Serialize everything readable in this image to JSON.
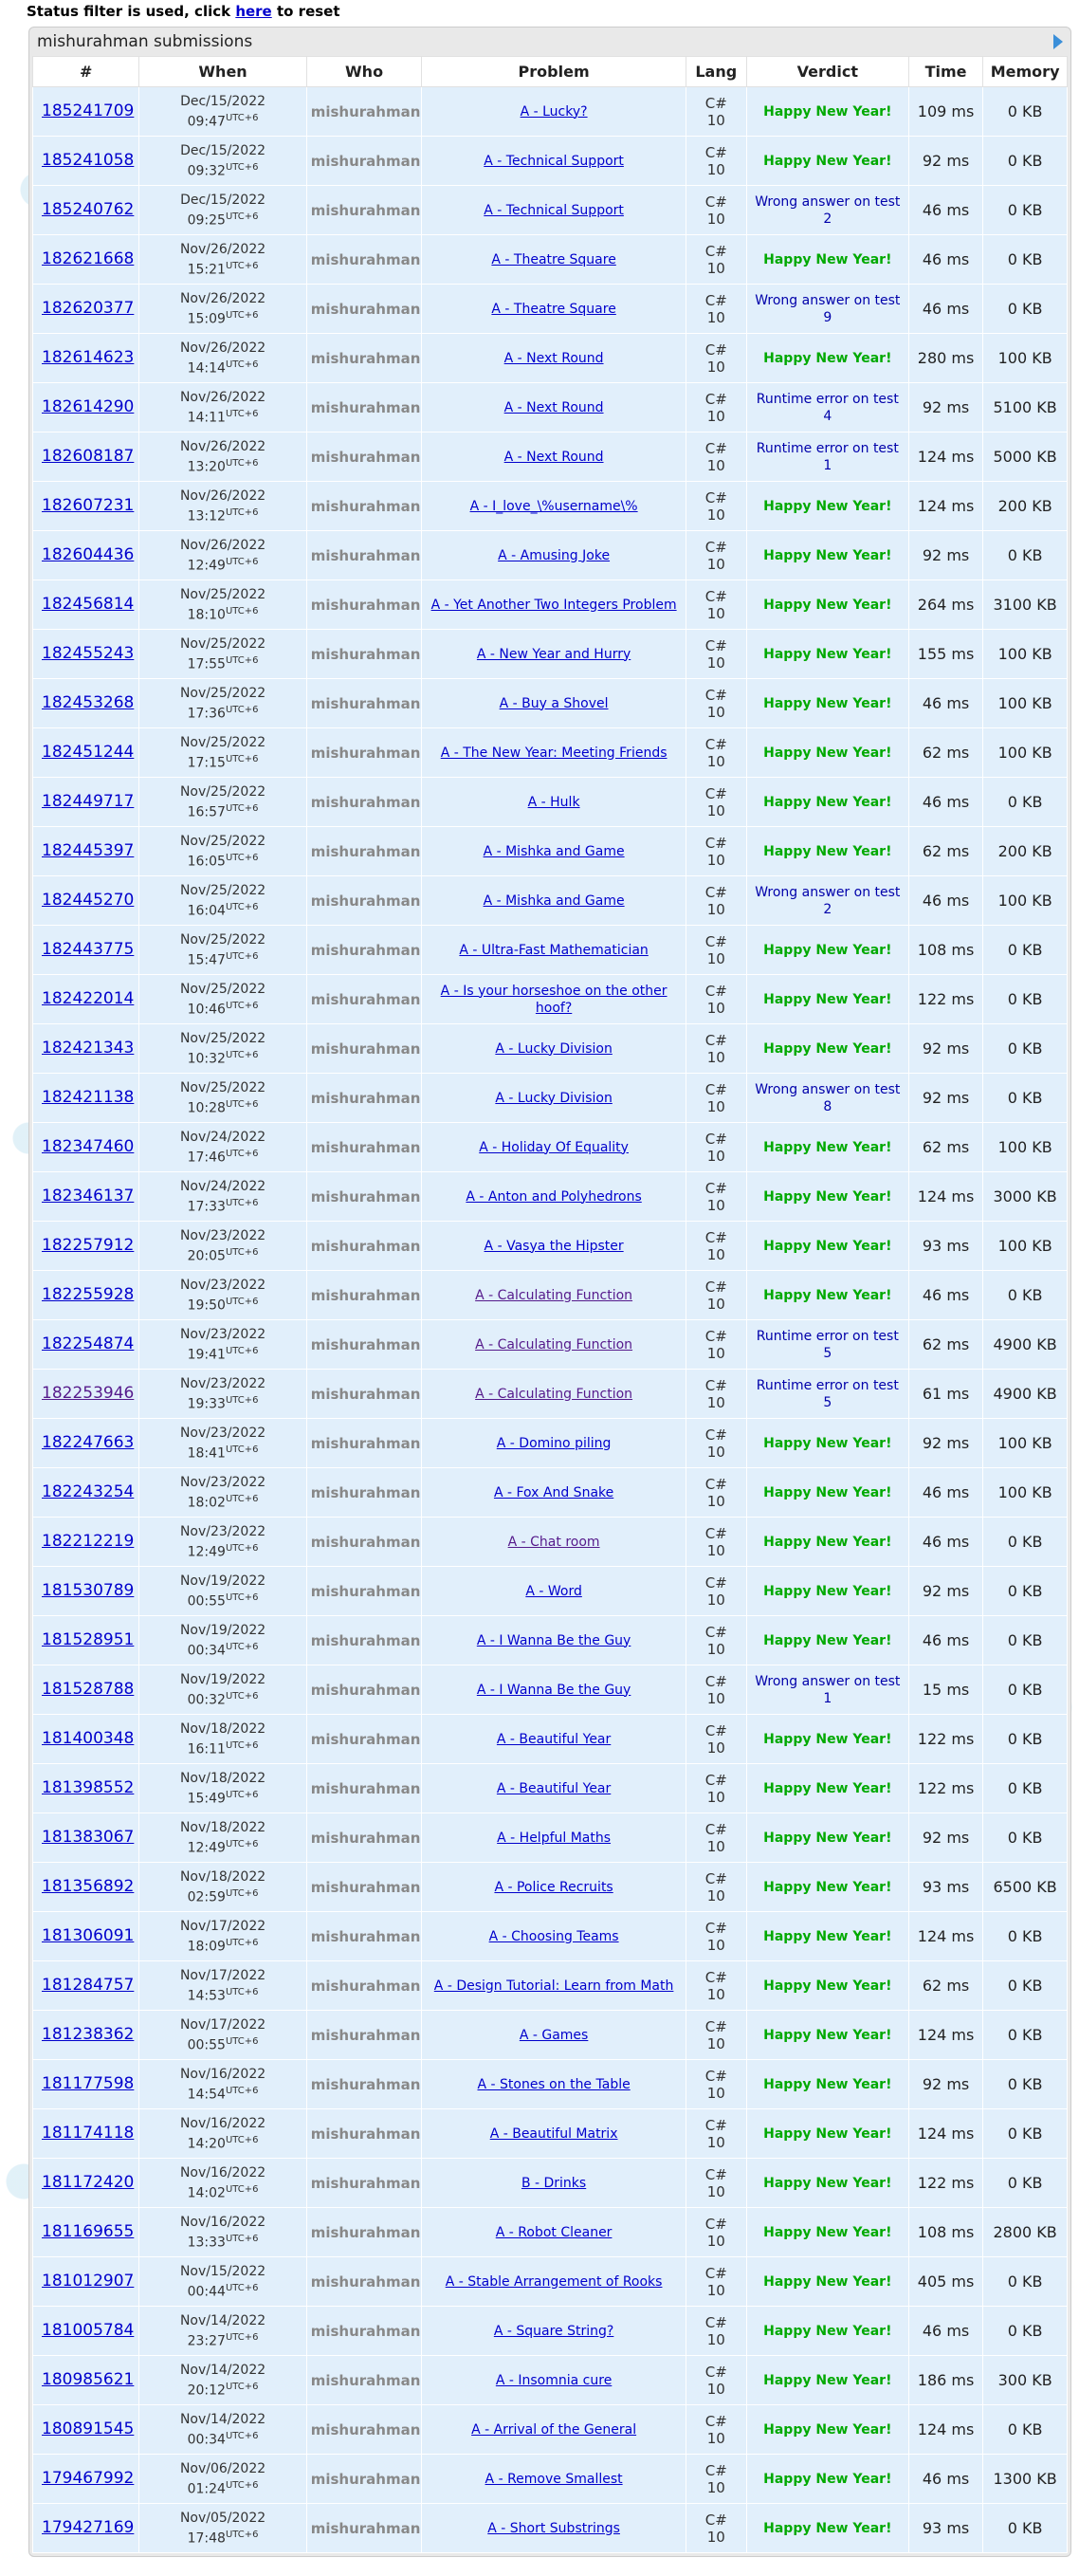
{
  "filter_note": {
    "prefix": "Status filter is used, click ",
    "link": "here",
    "suffix": " to reset"
  },
  "panel_title": "mishurahman submissions",
  "columns": {
    "id": "#",
    "when": "When",
    "who": "Who",
    "problem": "Problem",
    "lang": "Lang",
    "verdict": "Verdict",
    "time": "Time",
    "memory": "Memory"
  },
  "tz": "UTC+6",
  "user": "mishurahman",
  "lang_line1": "C#",
  "lang_line2": "10",
  "colors": {
    "accepted": "#00a900",
    "rejected": "#0000aa",
    "link": "#0000cc",
    "visited": "#551a8b",
    "row_bg": "#e1effb"
  },
  "icons": {
    "panel_toggle": "triangle-right-icon"
  },
  "submissions": [
    {
      "id": "185241709",
      "date": "Dec/15/2022",
      "time": "09:47",
      "problem": "A - Lucky?",
      "verdict": "Happy New Year!",
      "accepted": true,
      "time_ms": "109 ms",
      "memory": "0 KB"
    },
    {
      "id": "185241058",
      "date": "Dec/15/2022",
      "time": "09:32",
      "problem": "A - Technical Support",
      "verdict": "Happy New Year!",
      "accepted": true,
      "time_ms": "92 ms",
      "memory": "0 KB"
    },
    {
      "id": "185240762",
      "date": "Dec/15/2022",
      "time": "09:25",
      "problem": "A - Technical Support",
      "verdict": "Wrong answer on test 2",
      "accepted": false,
      "time_ms": "46 ms",
      "memory": "0 KB"
    },
    {
      "id": "182621668",
      "date": "Nov/26/2022",
      "time": "15:21",
      "problem": "A - Theatre Square",
      "verdict": "Happy New Year!",
      "accepted": true,
      "time_ms": "46 ms",
      "memory": "0 KB"
    },
    {
      "id": "182620377",
      "date": "Nov/26/2022",
      "time": "15:09",
      "problem": "A - Theatre Square",
      "verdict": "Wrong answer on test 9",
      "accepted": false,
      "time_ms": "46 ms",
      "memory": "0 KB"
    },
    {
      "id": "182614623",
      "date": "Nov/26/2022",
      "time": "14:14",
      "problem": "A - Next Round",
      "verdict": "Happy New Year!",
      "accepted": true,
      "time_ms": "280 ms",
      "memory": "100 KB"
    },
    {
      "id": "182614290",
      "date": "Nov/26/2022",
      "time": "14:11",
      "problem": "A - Next Round",
      "verdict": "Runtime error on test 4",
      "accepted": false,
      "time_ms": "92 ms",
      "memory": "5100 KB"
    },
    {
      "id": "182608187",
      "date": "Nov/26/2022",
      "time": "13:20",
      "problem": "A - Next Round",
      "verdict": "Runtime error on test 1",
      "accepted": false,
      "time_ms": "124 ms",
      "memory": "5000 KB"
    },
    {
      "id": "182607231",
      "date": "Nov/26/2022",
      "time": "13:12",
      "problem": "A - I_love_\\%username\\%",
      "verdict": "Happy New Year!",
      "accepted": true,
      "time_ms": "124 ms",
      "memory": "200 KB"
    },
    {
      "id": "182604436",
      "date": "Nov/26/2022",
      "time": "12:49",
      "problem": "A - Amusing Joke",
      "verdict": "Happy New Year!",
      "accepted": true,
      "time_ms": "92 ms",
      "memory": "0 KB"
    },
    {
      "id": "182456814",
      "date": "Nov/25/2022",
      "time": "18:10",
      "problem": "A - Yet Another Two Integers Problem",
      "verdict": "Happy New Year!",
      "accepted": true,
      "time_ms": "264 ms",
      "memory": "3100 KB"
    },
    {
      "id": "182455243",
      "date": "Nov/25/2022",
      "time": "17:55",
      "problem": "A - New Year and Hurry",
      "verdict": "Happy New Year!",
      "accepted": true,
      "time_ms": "155 ms",
      "memory": "100 KB"
    },
    {
      "id": "182453268",
      "date": "Nov/25/2022",
      "time": "17:36",
      "problem": "A - Buy a Shovel",
      "verdict": "Happy New Year!",
      "accepted": true,
      "time_ms": "46 ms",
      "memory": "100 KB"
    },
    {
      "id": "182451244",
      "date": "Nov/25/2022",
      "time": "17:15",
      "problem": "A - The New Year: Meeting Friends",
      "verdict": "Happy New Year!",
      "accepted": true,
      "time_ms": "62 ms",
      "memory": "100 KB"
    },
    {
      "id": "182449717",
      "date": "Nov/25/2022",
      "time": "16:57",
      "problem": "A - Hulk",
      "verdict": "Happy New Year!",
      "accepted": true,
      "time_ms": "46 ms",
      "memory": "0 KB"
    },
    {
      "id": "182445397",
      "date": "Nov/25/2022",
      "time": "16:05",
      "problem": "A - Mishka and Game",
      "verdict": "Happy New Year!",
      "accepted": true,
      "time_ms": "62 ms",
      "memory": "200 KB"
    },
    {
      "id": "182445270",
      "date": "Nov/25/2022",
      "time": "16:04",
      "problem": "A - Mishka and Game",
      "verdict": "Wrong answer on test 2",
      "accepted": false,
      "time_ms": "46 ms",
      "memory": "100 KB"
    },
    {
      "id": "182443775",
      "date": "Nov/25/2022",
      "time": "15:47",
      "problem": "A - Ultra-Fast Mathematician",
      "verdict": "Happy New Year!",
      "accepted": true,
      "time_ms": "108 ms",
      "memory": "0 KB"
    },
    {
      "id": "182422014",
      "date": "Nov/25/2022",
      "time": "10:46",
      "problem": "A - Is your horseshoe on the other hoof?",
      "verdict": "Happy New Year!",
      "accepted": true,
      "time_ms": "122 ms",
      "memory": "0 KB"
    },
    {
      "id": "182421343",
      "date": "Nov/25/2022",
      "time": "10:32",
      "problem": "A - Lucky Division",
      "verdict": "Happy New Year!",
      "accepted": true,
      "time_ms": "92 ms",
      "memory": "0 KB"
    },
    {
      "id": "182421138",
      "date": "Nov/25/2022",
      "time": "10:28",
      "problem": "A - Lucky Division",
      "verdict": "Wrong answer on test 8",
      "accepted": false,
      "time_ms": "92 ms",
      "memory": "0 KB"
    },
    {
      "id": "182347460",
      "date": "Nov/24/2022",
      "time": "17:46",
      "problem": "A - Holiday Of Equality",
      "verdict": "Happy New Year!",
      "accepted": true,
      "time_ms": "62 ms",
      "memory": "100 KB"
    },
    {
      "id": "182346137",
      "date": "Nov/24/2022",
      "time": "17:33",
      "problem": "A - Anton and Polyhedrons",
      "verdict": "Happy New Year!",
      "accepted": true,
      "time_ms": "124 ms",
      "memory": "3000 KB"
    },
    {
      "id": "182257912",
      "date": "Nov/23/2022",
      "time": "20:05",
      "problem": "A - Vasya the Hipster",
      "verdict": "Happy New Year!",
      "accepted": true,
      "time_ms": "93 ms",
      "memory": "100 KB"
    },
    {
      "id": "182255928",
      "date": "Nov/23/2022",
      "time": "19:50",
      "problem": "A - Calculating Function",
      "verdict": "Happy New Year!",
      "accepted": true,
      "time_ms": "46 ms",
      "memory": "0 KB",
      "visited_problem": true
    },
    {
      "id": "182254874",
      "date": "Nov/23/2022",
      "time": "19:41",
      "problem": "A - Calculating Function",
      "verdict": "Runtime error on test 5",
      "accepted": false,
      "time_ms": "62 ms",
      "memory": "4900 KB",
      "visited_problem": true
    },
    {
      "id": "182253946",
      "date": "Nov/23/2022",
      "time": "19:33",
      "problem": "A - Calculating Function",
      "verdict": "Runtime error on test 5",
      "accepted": false,
      "time_ms": "61 ms",
      "memory": "4900 KB",
      "visited_problem": true,
      "visited_id": true
    },
    {
      "id": "182247663",
      "date": "Nov/23/2022",
      "time": "18:41",
      "problem": "A - Domino piling",
      "verdict": "Happy New Year!",
      "accepted": true,
      "time_ms": "92 ms",
      "memory": "100 KB"
    },
    {
      "id": "182243254",
      "date": "Nov/23/2022",
      "time": "18:02",
      "problem": "A - Fox And Snake",
      "verdict": "Happy New Year!",
      "accepted": true,
      "time_ms": "46 ms",
      "memory": "100 KB"
    },
    {
      "id": "182212219",
      "date": "Nov/23/2022",
      "time": "12:49",
      "problem": "A - Chat room",
      "verdict": "Happy New Year!",
      "accepted": true,
      "time_ms": "46 ms",
      "memory": "0 KB",
      "visited_problem": true
    },
    {
      "id": "181530789",
      "date": "Nov/19/2022",
      "time": "00:55",
      "problem": "A - Word",
      "verdict": "Happy New Year!",
      "accepted": true,
      "time_ms": "92 ms",
      "memory": "0 KB"
    },
    {
      "id": "181528951",
      "date": "Nov/19/2022",
      "time": "00:34",
      "problem": "A - I Wanna Be the Guy",
      "verdict": "Happy New Year!",
      "accepted": true,
      "time_ms": "46 ms",
      "memory": "0 KB"
    },
    {
      "id": "181528788",
      "date": "Nov/19/2022",
      "time": "00:32",
      "problem": "A - I Wanna Be the Guy",
      "verdict": "Wrong answer on test 1",
      "accepted": false,
      "time_ms": "15 ms",
      "memory": "0 KB"
    },
    {
      "id": "181400348",
      "date": "Nov/18/2022",
      "time": "16:11",
      "problem": "A - Beautiful Year",
      "verdict": "Happy New Year!",
      "accepted": true,
      "time_ms": "122 ms",
      "memory": "0 KB"
    },
    {
      "id": "181398552",
      "date": "Nov/18/2022",
      "time": "15:49",
      "problem": "A - Beautiful Year",
      "verdict": "Happy New Year!",
      "accepted": true,
      "time_ms": "122 ms",
      "memory": "0 KB"
    },
    {
      "id": "181383067",
      "date": "Nov/18/2022",
      "time": "12:49",
      "problem": "A - Helpful Maths",
      "verdict": "Happy New Year!",
      "accepted": true,
      "time_ms": "92 ms",
      "memory": "0 KB"
    },
    {
      "id": "181356892",
      "date": "Nov/18/2022",
      "time": "02:59",
      "problem": "A - Police Recruits",
      "verdict": "Happy New Year!",
      "accepted": true,
      "time_ms": "93 ms",
      "memory": "6500 KB"
    },
    {
      "id": "181306091",
      "date": "Nov/17/2022",
      "time": "18:09",
      "problem": "A - Choosing Teams",
      "verdict": "Happy New Year!",
      "accepted": true,
      "time_ms": "124 ms",
      "memory": "0 KB"
    },
    {
      "id": "181284757",
      "date": "Nov/17/2022",
      "time": "14:53",
      "problem": "A - Design Tutorial: Learn from Math",
      "verdict": "Happy New Year!",
      "accepted": true,
      "time_ms": "62 ms",
      "memory": "0 KB"
    },
    {
      "id": "181238362",
      "date": "Nov/17/2022",
      "time": "00:55",
      "problem": "A - Games",
      "verdict": "Happy New Year!",
      "accepted": true,
      "time_ms": "124 ms",
      "memory": "0 KB"
    },
    {
      "id": "181177598",
      "date": "Nov/16/2022",
      "time": "14:54",
      "problem": "A - Stones on the Table",
      "verdict": "Happy New Year!",
      "accepted": true,
      "time_ms": "92 ms",
      "memory": "0 KB"
    },
    {
      "id": "181174118",
      "date": "Nov/16/2022",
      "time": "14:20",
      "problem": "A - Beautiful Matrix",
      "verdict": "Happy New Year!",
      "accepted": true,
      "time_ms": "124 ms",
      "memory": "0 KB"
    },
    {
      "id": "181172420",
      "date": "Nov/16/2022",
      "time": "14:02",
      "problem": "B - Drinks",
      "verdict": "Happy New Year!",
      "accepted": true,
      "time_ms": "122 ms",
      "memory": "0 KB"
    },
    {
      "id": "181169655",
      "date": "Nov/16/2022",
      "time": "13:33",
      "problem": "A - Robot Cleaner",
      "verdict": "Happy New Year!",
      "accepted": true,
      "time_ms": "108 ms",
      "memory": "2800 KB"
    },
    {
      "id": "181012907",
      "date": "Nov/15/2022",
      "time": "00:44",
      "problem": "A - Stable Arrangement of Rooks",
      "verdict": "Happy New Year!",
      "accepted": true,
      "time_ms": "405 ms",
      "memory": "0 KB"
    },
    {
      "id": "181005784",
      "date": "Nov/14/2022",
      "time": "23:27",
      "problem": "A - Square String?",
      "verdict": "Happy New Year!",
      "accepted": true,
      "time_ms": "46 ms",
      "memory": "0 KB"
    },
    {
      "id": "180985621",
      "date": "Nov/14/2022",
      "time": "20:12",
      "problem": "A - Insomnia cure",
      "verdict": "Happy New Year!",
      "accepted": true,
      "time_ms": "186 ms",
      "memory": "300 KB"
    },
    {
      "id": "180891545",
      "date": "Nov/14/2022",
      "time": "00:34",
      "problem": "A - Arrival of the General",
      "verdict": "Happy New Year!",
      "accepted": true,
      "time_ms": "124 ms",
      "memory": "0 KB"
    },
    {
      "id": "179467992",
      "date": "Nov/06/2022",
      "time": "01:24",
      "problem": "A - Remove Smallest",
      "verdict": "Happy New Year!",
      "accepted": true,
      "time_ms": "46 ms",
      "memory": "1300 KB"
    },
    {
      "id": "179427169",
      "date": "Nov/05/2022",
      "time": "17:48",
      "problem": "A - Short Substrings",
      "verdict": "Happy New Year!",
      "accepted": true,
      "time_ms": "93 ms",
      "memory": "0 KB"
    }
  ]
}
